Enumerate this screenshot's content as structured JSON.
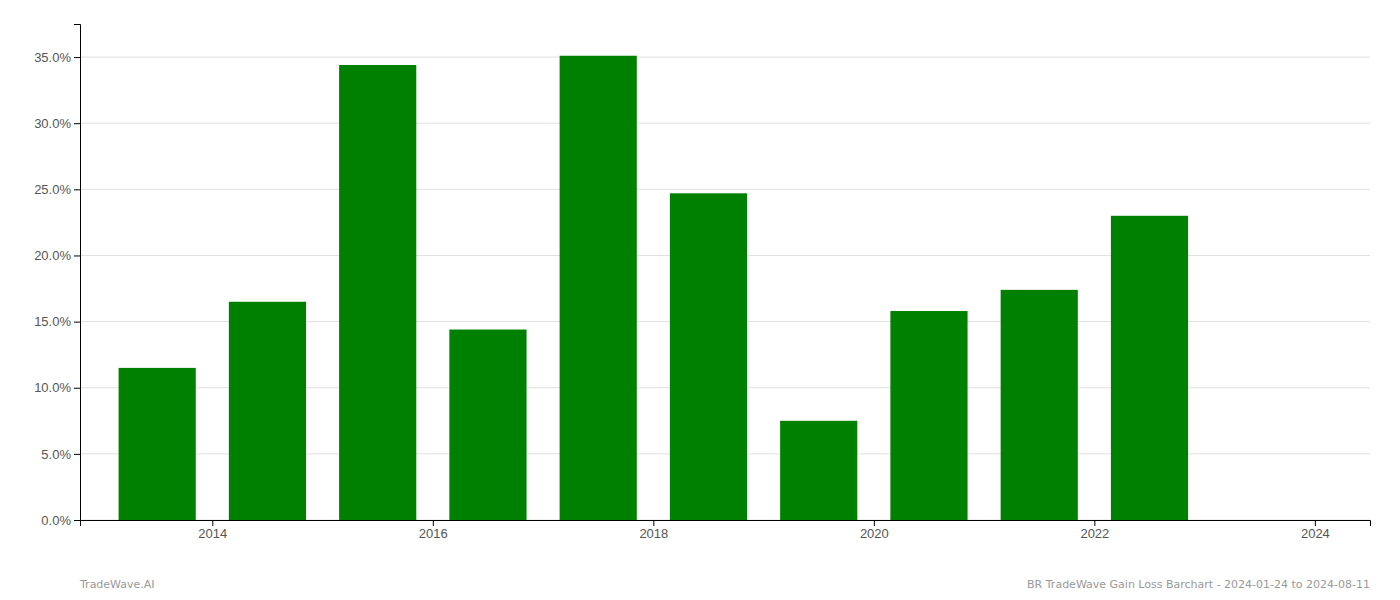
{
  "chart_data": {
    "type": "bar",
    "x": [
      2013.5,
      2014.5,
      2015.5,
      2016.5,
      2017.5,
      2018.5,
      2019.5,
      2020.5,
      2021.5,
      2022.5
    ],
    "values": [
      0.115,
      0.165,
      0.344,
      0.144,
      0.351,
      0.247,
      0.075,
      0.158,
      0.174,
      0.23
    ],
    "color": "#008000",
    "xlim": [
      2012.8,
      2024.5
    ],
    "xticks": [
      2014,
      2016,
      2018,
      2020,
      2022,
      2024
    ],
    "ylim": [
      0,
      0.375
    ],
    "yticks": [
      {
        "value": 0.0,
        "label": "0.0%"
      },
      {
        "value": 0.05,
        "label": "5.0%"
      },
      {
        "value": 0.1,
        "label": "10.0%"
      },
      {
        "value": 0.15,
        "label": "15.0%"
      },
      {
        "value": 0.2,
        "label": "20.0%"
      },
      {
        "value": 0.25,
        "label": "25.0%"
      },
      {
        "value": 0.3,
        "label": "30.0%"
      },
      {
        "value": 0.35,
        "label": "35.0%"
      }
    ],
    "grid": true,
    "annotations": [
      "TradeWave.AI",
      "BR TradeWave Gain Loss Barchart - 2024-01-24 to 2024-08-11"
    ]
  }
}
